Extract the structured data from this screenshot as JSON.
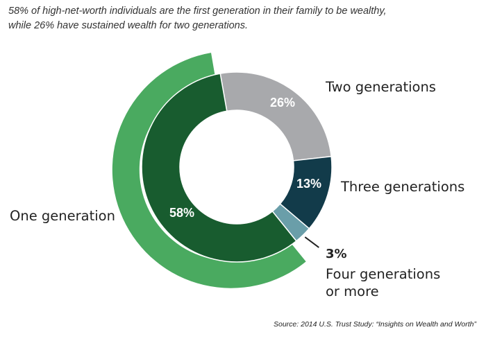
{
  "subtitle_line1": "58% of high-net-worth individuals are the first generation in their family to be wealthy,",
  "subtitle_line2": "while 26% have sustained wealth for two generations.",
  "source": "Source: 2014 U.S. Trust Study: “Insights on Wealth and Worth”",
  "colors": {
    "outer_highlight": "#4aaa60",
    "one_generation": "#185c2f",
    "two_generations": "#a8a9ac",
    "three_generations": "#123b4a",
    "four_generations": "#6a9ea9",
    "leader_line": "#222222"
  },
  "chart_data": {
    "type": "pie",
    "variant": "donut with exploded outer highlight ring on first slice",
    "slices": [
      {
        "label": "One generation",
        "value": 58,
        "value_label": "58%"
      },
      {
        "label": "Two generations",
        "value": 26,
        "value_label": "26%"
      },
      {
        "label": "Three generations",
        "value": 13,
        "value_label": "13%"
      },
      {
        "label": "Four generations or more",
        "value": 3,
        "value_label": "3%"
      }
    ],
    "label_lines": {
      "one": [
        "One generation"
      ],
      "two": [
        "Two generations"
      ],
      "three": [
        "Three generations"
      ],
      "four": [
        "Four generations",
        "or more"
      ]
    }
  }
}
